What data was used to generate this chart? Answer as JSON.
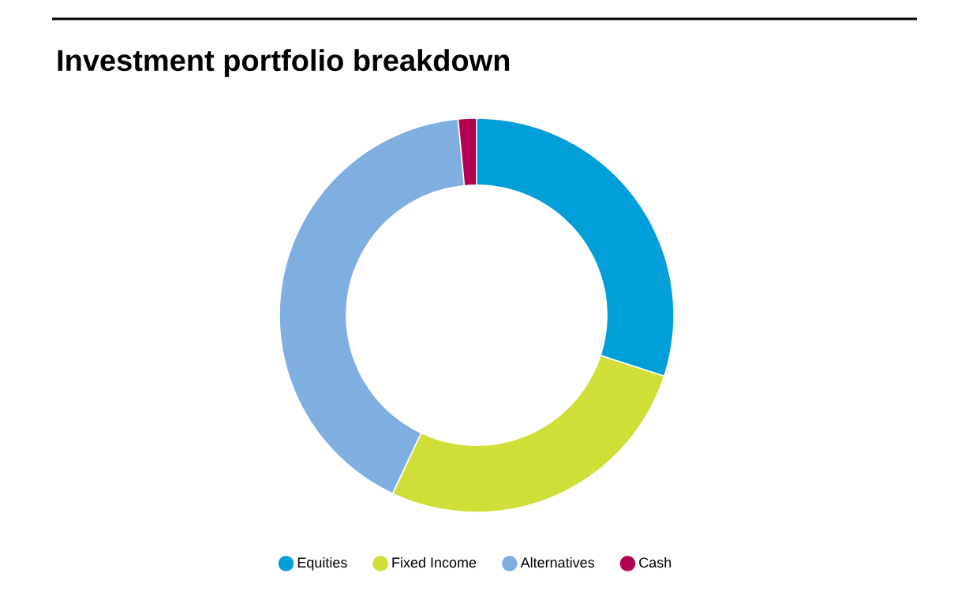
{
  "chart_data": {
    "type": "donut",
    "title": "Investment portfolio breakdown",
    "categories": [
      "Equities",
      "Fixed Income",
      "Alternatives",
      "Cash"
    ],
    "values": [
      30,
      27,
      41.5,
      1.5
    ],
    "colors": [
      "#009fd9",
      "#d0df37",
      "#7faee0",
      "#b5004f"
    ],
    "legend": "bottom"
  }
}
